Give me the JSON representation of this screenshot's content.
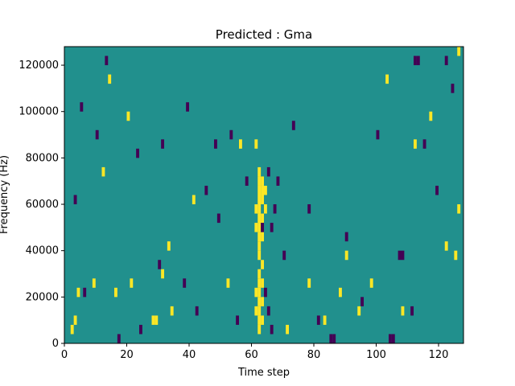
{
  "chart_data": {
    "type": "heatmap",
    "title": "Predicted : Gma",
    "xlabel": "Time step",
    "ylabel": "Frequency (Hz)",
    "xlim": [
      0,
      128
    ],
    "ylim": [
      0,
      128000
    ],
    "x_ticks": [
      0,
      20,
      40,
      60,
      80,
      100,
      120
    ],
    "y_ticks": [
      0,
      20000,
      40000,
      60000,
      80000,
      100000,
      120000
    ],
    "x_tick_labels": [
      "0",
      "20",
      "40",
      "60",
      "80",
      "100",
      "120"
    ],
    "y_tick_labels": [
      "0",
      "20000",
      "40000",
      "60000",
      "80000",
      "100000",
      "120000"
    ],
    "value_levels": [
      -1,
      0,
      1
    ],
    "colors": {
      "-1": "#440154",
      "0": "#21908d",
      "1": "#fde725"
    },
    "background_value": 0,
    "freq_bin_hz": 4000,
    "cells": [
      {
        "t": 62,
        "f": 4000,
        "v": 1
      },
      {
        "t": 62,
        "f": 8000,
        "v": 1
      },
      {
        "t": 62,
        "f": 12000,
        "v": 1
      },
      {
        "t": 62,
        "f": 16000,
        "v": 1
      },
      {
        "t": 62,
        "f": 20000,
        "v": 1
      },
      {
        "t": 62,
        "f": 24000,
        "v": 1
      },
      {
        "t": 62,
        "f": 28000,
        "v": 1
      },
      {
        "t": 62,
        "f": 36000,
        "v": 1
      },
      {
        "t": 62,
        "f": 40000,
        "v": 1
      },
      {
        "t": 62,
        "f": 44000,
        "v": 1
      },
      {
        "t": 62,
        "f": 48000,
        "v": 1
      },
      {
        "t": 62,
        "f": 52000,
        "v": 1
      },
      {
        "t": 62,
        "f": 56000,
        "v": 1
      },
      {
        "t": 62,
        "f": 60000,
        "v": 1
      },
      {
        "t": 62,
        "f": 64000,
        "v": 1
      },
      {
        "t": 62,
        "f": 68000,
        "v": 1
      },
      {
        "t": 62,
        "f": 72000,
        "v": 1
      },
      {
        "t": 63,
        "f": 8000,
        "v": 1
      },
      {
        "t": 63,
        "f": 16000,
        "v": 1
      },
      {
        "t": 63,
        "f": 24000,
        "v": 1
      },
      {
        "t": 63,
        "f": 32000,
        "v": 1
      },
      {
        "t": 63,
        "f": 44000,
        "v": 1
      },
      {
        "t": 63,
        "f": 52000,
        "v": 1
      },
      {
        "t": 63,
        "f": 60000,
        "v": 1
      },
      {
        "t": 63,
        "f": 64000,
        "v": 1
      },
      {
        "t": 63,
        "f": 68000,
        "v": 1
      },
      {
        "t": 61,
        "f": 12000,
        "v": 1
      },
      {
        "t": 61,
        "f": 20000,
        "v": 1
      },
      {
        "t": 61,
        "f": 48000,
        "v": 1
      },
      {
        "t": 61,
        "f": 56000,
        "v": 1
      },
      {
        "t": 61,
        "f": 84000,
        "v": 1
      },
      {
        "t": 64,
        "f": 56000,
        "v": 1
      },
      {
        "t": 64,
        "f": 64000,
        "v": 1
      },
      {
        "t": 4,
        "f": 20000,
        "v": 1
      },
      {
        "t": 9,
        "f": 24000,
        "v": 1
      },
      {
        "t": 16,
        "f": 20000,
        "v": 1
      },
      {
        "t": 21,
        "f": 24000,
        "v": 1
      },
      {
        "t": 28,
        "f": 8000,
        "v": 1
      },
      {
        "t": 29,
        "f": 8000,
        "v": 1
      },
      {
        "t": 31,
        "f": 28000,
        "v": 1
      },
      {
        "t": 33,
        "f": 40000,
        "v": 1
      },
      {
        "t": 34,
        "f": 12000,
        "v": 1
      },
      {
        "t": 12,
        "f": 72000,
        "v": 1
      },
      {
        "t": 14,
        "f": 112000,
        "v": 1
      },
      {
        "t": 20,
        "f": 96000,
        "v": 1
      },
      {
        "t": 41,
        "f": 60000,
        "v": 1
      },
      {
        "t": 52,
        "f": 24000,
        "v": 1
      },
      {
        "t": 56,
        "f": 84000,
        "v": 1
      },
      {
        "t": 78,
        "f": 24000,
        "v": 1
      },
      {
        "t": 83,
        "f": 8000,
        "v": 1
      },
      {
        "t": 88,
        "f": 20000,
        "v": 1
      },
      {
        "t": 90,
        "f": 36000,
        "v": 1
      },
      {
        "t": 94,
        "f": 12000,
        "v": 1
      },
      {
        "t": 98,
        "f": 24000,
        "v": 1
      },
      {
        "t": 103,
        "f": 112000,
        "v": 1
      },
      {
        "t": 108,
        "f": 12000,
        "v": 1
      },
      {
        "t": 112,
        "f": 84000,
        "v": 1
      },
      {
        "t": 117,
        "f": 96000,
        "v": 1
      },
      {
        "t": 122,
        "f": 40000,
        "v": 1
      },
      {
        "t": 125,
        "f": 36000,
        "v": 1
      },
      {
        "t": 126,
        "f": 56000,
        "v": 1
      },
      {
        "t": 126,
        "f": 124000,
        "v": 1
      },
      {
        "t": 2,
        "f": 4000,
        "v": 1
      },
      {
        "t": 3,
        "f": 8000,
        "v": 1
      },
      {
        "t": 71,
        "f": 4000,
        "v": 1
      },
      {
        "t": 63,
        "f": 48000,
        "v": -1
      },
      {
        "t": 66,
        "f": 4000,
        "v": -1
      },
      {
        "t": 66,
        "f": 48000,
        "v": -1
      },
      {
        "t": 67,
        "f": 56000,
        "v": -1
      },
      {
        "t": 68,
        "f": 68000,
        "v": -1
      },
      {
        "t": 70,
        "f": 36000,
        "v": -1
      },
      {
        "t": 64,
        "f": 20000,
        "v": -1
      },
      {
        "t": 65,
        "f": 12000,
        "v": -1
      },
      {
        "t": 65,
        "f": 72000,
        "v": -1
      },
      {
        "t": 3,
        "f": 60000,
        "v": -1
      },
      {
        "t": 6,
        "f": 20000,
        "v": -1
      },
      {
        "t": 10,
        "f": 88000,
        "v": -1
      },
      {
        "t": 17,
        "f": 0,
        "v": -1
      },
      {
        "t": 24,
        "f": 4000,
        "v": -1
      },
      {
        "t": 30,
        "f": 32000,
        "v": -1
      },
      {
        "t": 38,
        "f": 24000,
        "v": -1
      },
      {
        "t": 42,
        "f": 12000,
        "v": -1
      },
      {
        "t": 45,
        "f": 64000,
        "v": -1
      },
      {
        "t": 49,
        "f": 52000,
        "v": -1
      },
      {
        "t": 55,
        "f": 8000,
        "v": -1
      },
      {
        "t": 73,
        "f": 92000,
        "v": -1
      },
      {
        "t": 78,
        "f": 56000,
        "v": -1
      },
      {
        "t": 81,
        "f": 8000,
        "v": -1
      },
      {
        "t": 85,
        "f": 0,
        "v": -1
      },
      {
        "t": 86,
        "f": 0,
        "v": -1
      },
      {
        "t": 90,
        "f": 44000,
        "v": -1
      },
      {
        "t": 95,
        "f": 16000,
        "v": -1
      },
      {
        "t": 100,
        "f": 88000,
        "v": -1
      },
      {
        "t": 104,
        "f": 0,
        "v": -1
      },
      {
        "t": 105,
        "f": 0,
        "v": -1
      },
      {
        "t": 107,
        "f": 36000,
        "v": -1
      },
      {
        "t": 108,
        "f": 36000,
        "v": -1
      },
      {
        "t": 111,
        "f": 12000,
        "v": -1
      },
      {
        "t": 115,
        "f": 84000,
        "v": -1
      },
      {
        "t": 119,
        "f": 64000,
        "v": -1
      },
      {
        "t": 124,
        "f": 108000,
        "v": -1
      },
      {
        "t": 122,
        "f": 120000,
        "v": -1
      },
      {
        "t": 112,
        "f": 120000,
        "v": -1
      },
      {
        "t": 113,
        "f": 120000,
        "v": -1
      },
      {
        "t": 5,
        "f": 100000,
        "v": -1
      },
      {
        "t": 13,
        "f": 120000,
        "v": -1
      },
      {
        "t": 23,
        "f": 80000,
        "v": -1
      },
      {
        "t": 31,
        "f": 84000,
        "v": -1
      },
      {
        "t": 39,
        "f": 100000,
        "v": -1
      },
      {
        "t": 48,
        "f": 84000,
        "v": -1
      },
      {
        "t": 53,
        "f": 88000,
        "v": -1
      },
      {
        "t": 58,
        "f": 68000,
        "v": -1
      }
    ]
  }
}
